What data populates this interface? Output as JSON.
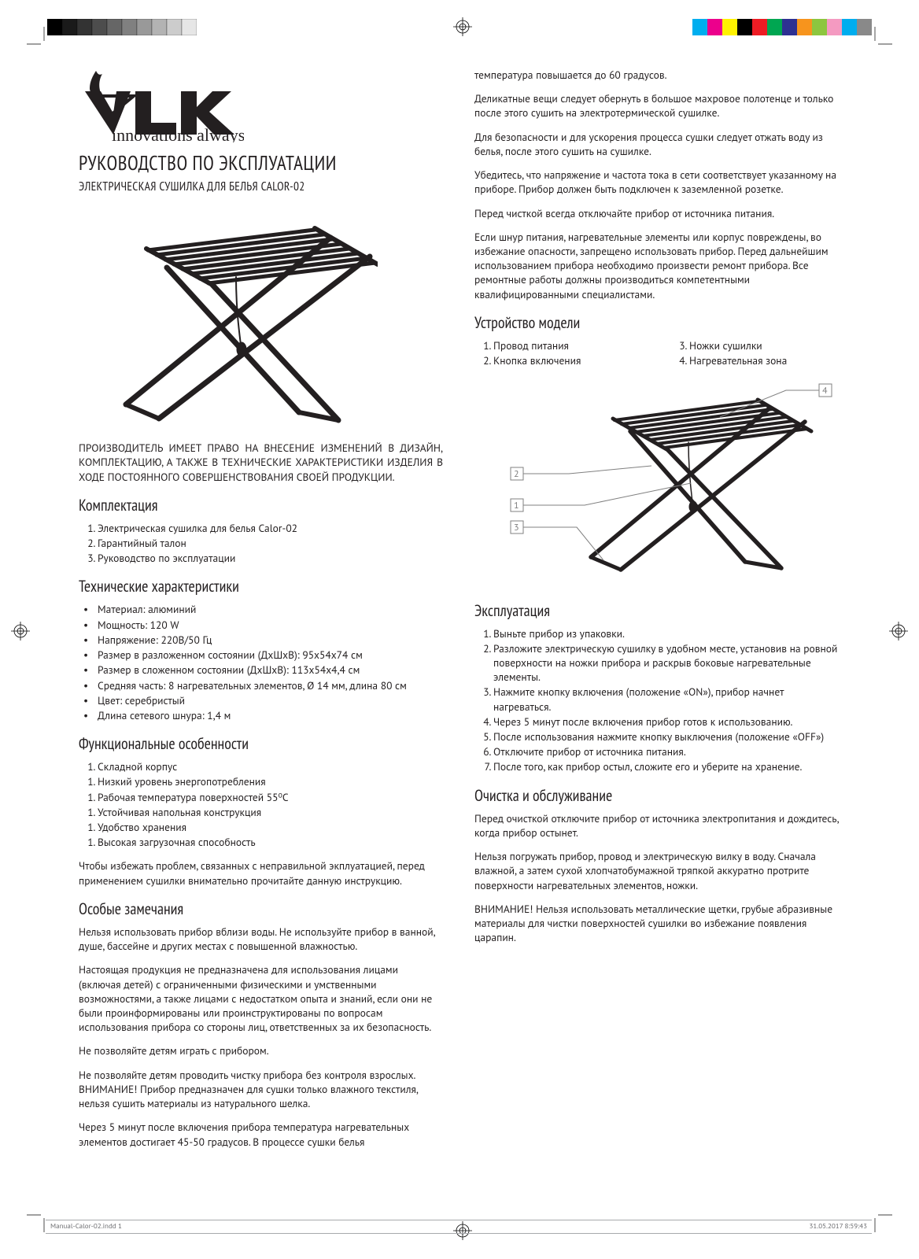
{
  "printermarks": {
    "gray_swatches": [
      "#000000",
      "#1a1a1a",
      "#333333",
      "#4d4d4d",
      "#666666",
      "#808080",
      "#999999",
      "#b3b3b3",
      "#cccccc",
      "#e6e6e6"
    ],
    "swatch_w": 19,
    "swatch_h": 21,
    "color_swatches": [
      "#00aeef",
      "#ec008c",
      "#fff200",
      "#000000",
      "#ed1c24",
      "#00a651",
      "#2e3192",
      "#f7941d",
      "#8dc63f",
      "#f49ac1",
      "#00adee",
      "#898989"
    ],
    "cswatch_w": 19,
    "cswatch_h": 21
  },
  "logo": {
    "name": "VLK",
    "tagline": "innovations always"
  },
  "title": "РУКОВОДСТВО ПО ЭКСПЛУАТАЦИИ",
  "subtitle": "ЭЛЕКТРИЧЕСКАЯ СУШИЛКА ДЛЯ БЕЛЬЯ CALOR-02",
  "disclaimer": "ПРОИЗВОДИТЕЛЬ ИМЕЕТ ПРАВО НА ВНЕСЕНИЕ ИЗМЕНЕНИЙ В ДИЗАЙН, КОМПЛЕКТАЦИЮ, А ТАКЖЕ В ТЕХНИЧЕСКИЕ ХАРАКТЕРИСТИКИ ИЗДЕЛИЯ В ХОДЕ ПОСТОЯННОГО СОВЕРШЕНСТВОВАНИЯ СВОЕЙ ПРОДУКЦИИ.",
  "sections": {
    "kit": {
      "title": "Комплектация",
      "items": [
        "Электрическая сушилка для белья Calor-02",
        "Гарантийный талон",
        "Руководство по эксплуатации"
      ]
    },
    "specs": {
      "title": "Технические характеристики",
      "items": [
        "Материал: алюминий",
        "Мощность: 120 W",
        "Напряжение: 220В/50 Гц",
        "Размер в разложенном состоянии (ДхШхВ): 95х54х74 см",
        "Размер в сложенном состоянии (ДхШхВ): 113х54х4,4 см",
        "Средняя часть: 8 нагревательных элементов, Ø 14 мм, длина 80 см",
        "Цвет: серебристый",
        "Длина сетевого шнура: 1,4 м"
      ]
    },
    "features": {
      "title": "Функциональные особенности",
      "items": [
        "Складной корпус",
        "Низкий уровень энергопотребления",
        "Рабочая температура поверхностей 55⁰С",
        "Устойчивая напольная конструкция",
        "Удобство хранения",
        "Высокая загрузочная способность"
      ],
      "after": "Чтобы избежать проблем, связанных с неправильной экплуатацией, перед применением сушилки внимательно прочитайте данную инструкцию."
    },
    "special": {
      "title": "Особые замечания",
      "p": [
        "Нельзя использовать прибор вблизи воды. Не используйте прибор в ванной, душе, бассейне и других местах с повышенной влажностью.",
        "Настоящая продукция не предназначена для использования лицами (включая детей) с ограниченными физическими и умственными возможностями, а также лицами с недостатком опыта и знаний, если они не были проинформированы или проинструктированы по вопросам использования прибора со стороны лиц, ответственных за их безопасность.",
        "Не позволяйте детям играть с прибором.",
        "Не позволяйте детям проводить чистку прибора без контроля взрослых. ВНИМАНИЕ! Прибор предназначен для сушки только влажного текстиля, нельзя сушить материалы из натурального шелка.",
        "Через 5 минут после включения прибора температура нагревательных элементов достигает 45-50 градусов. В процессе сушки белья"
      ]
    },
    "special_cont": [
      "температура повышается до 60 градусов.",
      "Деликатные вещи следует обернуть в большое махровое полотенце и только после этого сушить на электротермической сушилке.",
      "Для безопасности и для ускорения процесса сушки следует отжать воду из белья, после этого сушить на сушилке.",
      "Убедитесь, что напряжение и частота тока в сети соответствует указанному на приборе. Прибор должен быть подключен к заземленной розетке.",
      "Перед чисткой всегда отключайте прибор от источника питания.",
      "Если шнур питания, нагревательные элементы или корпус повреждены, во избежание опасности, запрещено использовать  прибор. Перед дальнейшим использованием прибора необходимо произвести ремонт прибора. Все ремонтные работы должны производиться компетентными квалифицированными специалистами."
    ],
    "parts": {
      "title": "Устройство модели",
      "left": [
        "Провод питания",
        "Кнопка включения"
      ],
      "right": [
        "Ножки сушилки",
        "Нагревательная зона"
      ]
    },
    "usage": {
      "title": "Эксплуатация",
      "items": [
        "Выньте прибор из упаковки.",
        "Разложите электрическую сушилку в удобном месте, установив на ровной поверхности на ножки прибора и раскрыв боковые нагревательные элементы.",
        "Нажмите кнопку включения (положение «ON»), прибор начнет нагреваться.",
        "Через 5 минут после включения прибор готов к использованию.",
        "После использования нажмите кнопку выключения (положение «OFF»)",
        "Отключите прибор от источника питания.",
        "После того, как прибор остыл, сложите его и уберите на хранение."
      ]
    },
    "clean": {
      "title": "Очистка и обслуживание",
      "p": [
        "Перед очисткой отключите прибор от источника электропитания и дождитесь, когда прибор остынет.",
        "Нельзя погружать прибор, провод и электрическую вилку в воду. Сначала влажной, а затем сухой хлопчатобумажной тряпкой аккуратно протрите поверхности нагревательных элементов, ножки.",
        "ВНИМАНИЕ! Нельзя использовать металлические щетки, грубые абразивные материалы для чистки поверхностей сушилки во избежание появления царапин."
      ]
    }
  },
  "footer": {
    "file": "Manual-Calor-02.indd   1",
    "datetime": "31.05.2017   8:59:43"
  }
}
